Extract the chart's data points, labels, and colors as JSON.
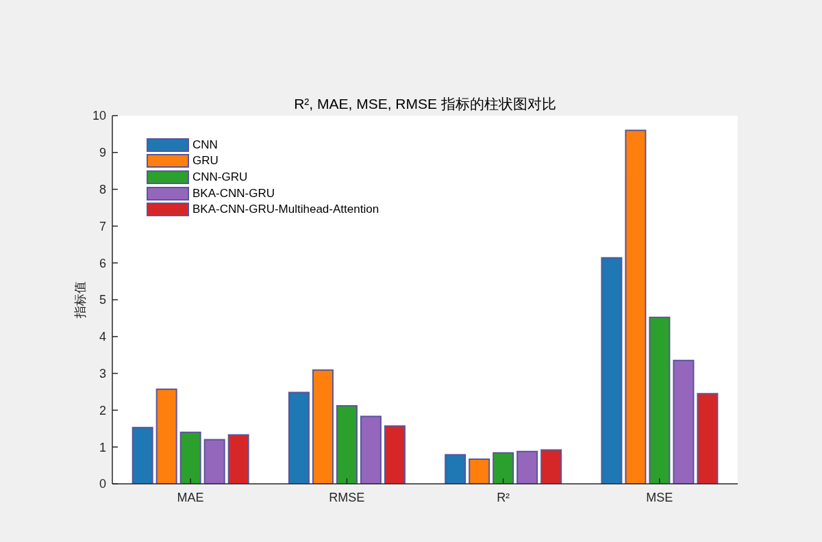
{
  "chart_data": {
    "type": "bar",
    "title": "R², MAE, MSE, RMSE 指标的柱状图对比",
    "ylabel": "指标值",
    "categories": [
      "MAE",
      "RMSE",
      "R²",
      "MSE"
    ],
    "series": [
      {
        "name": "CNN",
        "color": "#1f77b4",
        "values": [
          1.53,
          2.48,
          0.79,
          6.14
        ]
      },
      {
        "name": "GRU",
        "color": "#ff7f0e",
        "values": [
          2.57,
          3.09,
          0.67,
          9.6
        ]
      },
      {
        "name": "CNN-GRU",
        "color": "#2ca02c",
        "values": [
          1.4,
          2.12,
          0.84,
          4.52
        ]
      },
      {
        "name": "BKA-CNN-GRU",
        "color": "#9467bd",
        "values": [
          1.2,
          1.83,
          0.88,
          3.35
        ]
      },
      {
        "name": "BKA-CNN-GRU-Multihead-Attention",
        "color": "#d62728",
        "values": [
          1.33,
          1.57,
          0.92,
          2.45
        ]
      }
    ],
    "ylim": [
      0,
      10
    ],
    "yticks": [
      0,
      1,
      2,
      3,
      4,
      5,
      6,
      7,
      8,
      9,
      10
    ],
    "legend": "top left"
  }
}
